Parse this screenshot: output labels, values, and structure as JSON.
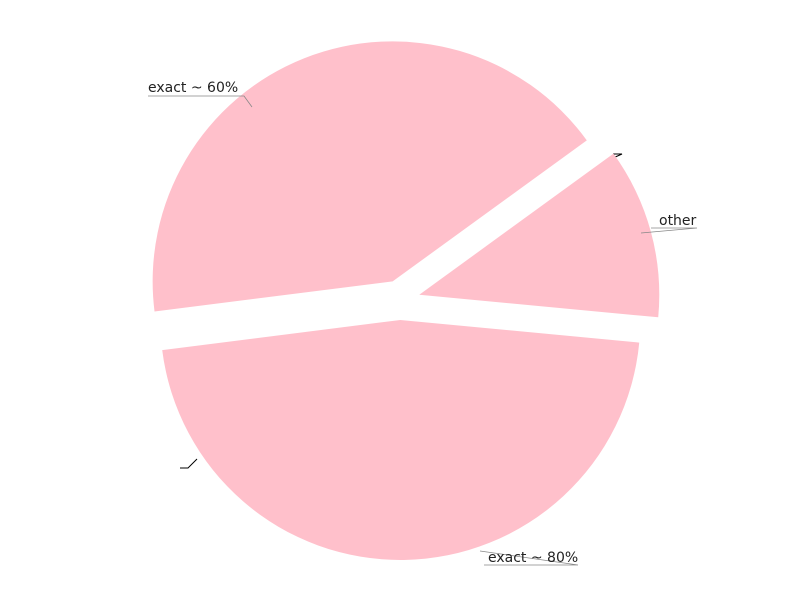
{
  "chart_data": {
    "type": "pie",
    "title": "",
    "slices": [
      {
        "label": "exact ~ 60%",
        "value": 42.0,
        "color": "#FFC0CB"
      },
      {
        "label": "",
        "value": 0.0,
        "color": "#FFC0CB"
      },
      {
        "label": "exact ~ 80%",
        "value": 46.5,
        "color": "#FFC0CB"
      },
      {
        "label": "",
        "value": 0.0,
        "color": "#FFC0CB"
      },
      {
        "label": "other",
        "value": 11.5,
        "color": "#FFC0CB"
      }
    ],
    "legend": "none"
  }
}
